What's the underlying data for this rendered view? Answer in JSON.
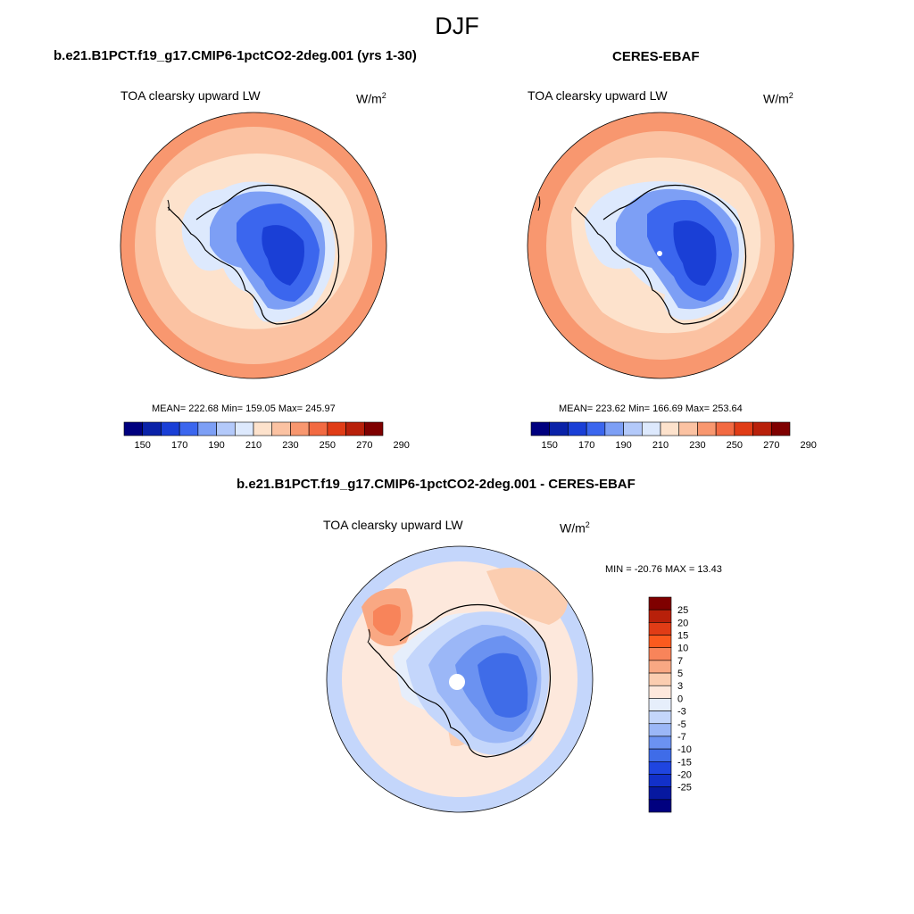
{
  "season": "DJF",
  "panels": [
    {
      "title": "b.e21.B1PCT.f19_g17.CMIP6-1pctCO2-2deg.001 (yrs 1-30)",
      "variable": "TOA clearsky upward LW",
      "units": "W/m",
      "units_power": "2",
      "stats": "MEAN= 222.68  Min= 159.05  Max= 245.97",
      "colorbar_ticks": [
        "150",
        "170",
        "190",
        "210",
        "230",
        "250",
        "270",
        "290"
      ]
    },
    {
      "title": "CERES-EBAF",
      "variable": "TOA clearsky upward LW",
      "units": "W/m",
      "units_power": "2",
      "stats": "MEAN= 223.62  Min= 166.69  Max= 253.64",
      "colorbar_ticks": [
        "150",
        "170",
        "190",
        "210",
        "230",
        "250",
        "270",
        "290"
      ]
    },
    {
      "title": "b.e21.B1PCT.f19_g17.CMIP6-1pctCO2-2deg.001 - CERES-EBAF",
      "variable": "TOA clearsky upward LW",
      "units": "W/m",
      "units_power": "2",
      "stats": "MIN = -20.76 MAX =  13.43",
      "colorbar_ticks": [
        "25",
        "20",
        "15",
        "10",
        "7",
        "5",
        "3",
        "0",
        "-3",
        "-5",
        "-7",
        "-10",
        "-15",
        "-20",
        "-25"
      ]
    }
  ],
  "colors": {
    "abs_scale": [
      "#00007f",
      "#0a22a8",
      "#1a3fd6",
      "#3b66ee",
      "#7d9ff5",
      "#b3c9fa",
      "#dde9fd",
      "#fde2cc",
      "#fbc2a2",
      "#f8976f",
      "#f26a42",
      "#e03c16",
      "#b8200a",
      "#7f0000"
    ],
    "diff_scale": [
      "#7f0000",
      "#b8200a",
      "#e03c16",
      "#fb5a1e",
      "#f8845a",
      "#f9a883",
      "#fbcdb0",
      "#fde8dc",
      "#e6eefb",
      "#c4d6fb",
      "#9bb7f7",
      "#6b92f1",
      "#3f6ce8",
      "#1f45e0",
      "#1230c9",
      "#0618a0",
      "#00007f"
    ]
  }
}
